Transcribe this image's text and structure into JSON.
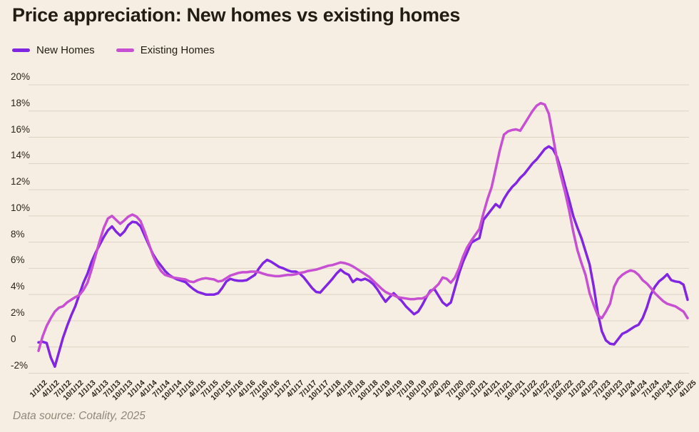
{
  "title": "Price appreciation: New homes vs existing homes",
  "footer": "Data source: Cotality, 2025",
  "legend": [
    {
      "label": "New Homes",
      "color": "#8026E3"
    },
    {
      "label": "Existing Homes",
      "color": "#C750D2"
    }
  ],
  "colors": {
    "background": "#F7EEE3",
    "text": "#221D14",
    "axis_text": "#2A2418",
    "grid": "#DDD3C3",
    "muted": "#8E8878",
    "new_homes": "#8026E3",
    "existing_homes": "#C750D2"
  },
  "chart_data": {
    "type": "line",
    "title": "Price appreciation: New homes vs existing homes",
    "x_range": [
      "1/1/12",
      "4/1/25"
    ],
    "frequency": "monthly",
    "y_unit": "%",
    "ylim": [
      -2,
      20
    ],
    "grid": true,
    "legend_position": "top-left",
    "y_ticks": [
      {
        "value": 20,
        "label": "20%"
      },
      {
        "value": 18,
        "label": "18%"
      },
      {
        "value": 16,
        "label": "16%"
      },
      {
        "value": 14,
        "label": "14%"
      },
      {
        "value": 12,
        "label": "12%"
      },
      {
        "value": 10,
        "label": "10%"
      },
      {
        "value": 8,
        "label": "8%"
      },
      {
        "value": 6,
        "label": "6%"
      },
      {
        "value": 4,
        "label": "4%"
      },
      {
        "value": 2,
        "label": "2%"
      },
      {
        "value": 0,
        "label": "0"
      },
      {
        "value": -2,
        "label": "-2%"
      }
    ],
    "x_tick_labels": [
      "1/1/12",
      "4/1/12",
      "7/1/12",
      "10/1/12",
      "1/1/13",
      "4/1/13",
      "7/1/13",
      "10/1/13",
      "1/1/14",
      "4/1/14",
      "7/1/14",
      "10/1/14",
      "1/1/15",
      "4/1/15",
      "7/1/15",
      "10/1/15",
      "1/1/16",
      "4/1/16",
      "7/1/16",
      "10/1/16",
      "1/1/17",
      "4/1/17",
      "7/1/17",
      "10/1/17",
      "1/1/18",
      "4/1/18",
      "7/1/18",
      "10/1/18",
      "1/1/19",
      "4/1/19",
      "7/1/19",
      "10/1/19",
      "1/1/20",
      "4/1/20",
      "7/1/20",
      "10/1/20",
      "1/1/21",
      "4/1/21",
      "7/1/21",
      "10/1/21",
      "1/1/22",
      "4/1/22",
      "7/1/22",
      "10/1/22",
      "1/1/23",
      "4/1/23",
      "7/1/23",
      "10/1/23",
      "1/1/24",
      "4/1/24",
      "7/1/24",
      "10/1/24",
      "1/1/25",
      "4/1/25"
    ],
    "series": [
      {
        "name": "New Homes",
        "color": "#8026E3",
        "values": [
          0.35,
          0.4,
          0.3,
          -0.8,
          -1.5,
          -0.4,
          0.7,
          1.6,
          2.4,
          3.1,
          4.0,
          4.9,
          5.6,
          6.5,
          7.2,
          7.8,
          8.4,
          8.9,
          9.2,
          8.8,
          8.5,
          8.8,
          9.3,
          9.55,
          9.5,
          9.2,
          8.5,
          7.8,
          7.1,
          6.6,
          6.2,
          5.8,
          5.5,
          5.3,
          5.15,
          5.05,
          4.95,
          4.65,
          4.4,
          4.2,
          4.1,
          4.0,
          4.0,
          4.0,
          4.1,
          4.5,
          5.0,
          5.2,
          5.1,
          5.05,
          5.05,
          5.1,
          5.3,
          5.5,
          6.0,
          6.4,
          6.65,
          6.5,
          6.3,
          6.1,
          6.0,
          5.85,
          5.75,
          5.75,
          5.6,
          5.3,
          4.9,
          4.5,
          4.2,
          4.15,
          4.5,
          4.85,
          5.2,
          5.6,
          5.9,
          5.65,
          5.5,
          4.95,
          5.2,
          5.1,
          5.2,
          5.05,
          4.8,
          4.4,
          3.9,
          3.45,
          3.8,
          4.1,
          3.8,
          3.5,
          3.1,
          2.8,
          2.5,
          2.7,
          3.2,
          3.8,
          4.3,
          4.4,
          3.9,
          3.4,
          3.15,
          3.4,
          4.5,
          5.6,
          6.5,
          7.2,
          7.95,
          8.15,
          8.3,
          9.7,
          10.1,
          10.5,
          10.9,
          10.65,
          11.3,
          11.8,
          12.2,
          12.5,
          12.9,
          13.2,
          13.6,
          14.0,
          14.3,
          14.7,
          15.1,
          15.3,
          15.1,
          14.5,
          13.5,
          12.3,
          11.2,
          10.0,
          9.1,
          8.3,
          7.3,
          6.3,
          4.6,
          2.6,
          1.2,
          0.5,
          0.25,
          0.2,
          0.6,
          1.0,
          1.15,
          1.35,
          1.55,
          1.7,
          2.2,
          3.0,
          4.0,
          4.6,
          5.0,
          5.25,
          5.55,
          5.1,
          5.0,
          4.95,
          4.75,
          3.6
        ]
      },
      {
        "name": "Existing Homes",
        "color": "#C750D2",
        "values": [
          -0.3,
          0.8,
          1.6,
          2.2,
          2.7,
          3.0,
          3.1,
          3.4,
          3.6,
          3.8,
          3.95,
          4.35,
          4.9,
          5.9,
          7.0,
          8.1,
          9.1,
          9.8,
          10.0,
          9.7,
          9.4,
          9.65,
          9.95,
          10.1,
          9.95,
          9.6,
          8.8,
          7.9,
          7.0,
          6.3,
          5.8,
          5.5,
          5.4,
          5.3,
          5.25,
          5.2,
          5.15,
          5.0,
          4.95,
          5.1,
          5.2,
          5.25,
          5.2,
          5.15,
          5.0,
          5.05,
          5.25,
          5.45,
          5.55,
          5.65,
          5.7,
          5.7,
          5.75,
          5.75,
          5.7,
          5.6,
          5.5,
          5.45,
          5.4,
          5.4,
          5.45,
          5.5,
          5.5,
          5.55,
          5.65,
          5.7,
          5.8,
          5.85,
          5.9,
          6.0,
          6.1,
          6.2,
          6.25,
          6.35,
          6.45,
          6.4,
          6.3,
          6.15,
          5.95,
          5.75,
          5.55,
          5.35,
          5.05,
          4.75,
          4.45,
          4.2,
          4.05,
          3.95,
          3.8,
          3.75,
          3.7,
          3.65,
          3.65,
          3.7,
          3.7,
          3.85,
          4.2,
          4.5,
          4.8,
          5.3,
          5.2,
          4.9,
          5.3,
          6.0,
          6.9,
          7.6,
          8.1,
          8.55,
          9.0,
          10.2,
          11.3,
          12.2,
          13.6,
          15.0,
          16.2,
          16.45,
          16.55,
          16.6,
          16.5,
          17.0,
          17.5,
          18.0,
          18.4,
          18.6,
          18.5,
          17.8,
          16.1,
          14.3,
          13.0,
          11.8,
          10.4,
          8.8,
          7.4,
          6.4,
          5.5,
          4.1,
          3.2,
          2.4,
          2.2,
          2.7,
          3.3,
          4.6,
          5.2,
          5.5,
          5.7,
          5.85,
          5.75,
          5.5,
          5.1,
          4.85,
          4.5,
          4.1,
          3.8,
          3.5,
          3.3,
          3.2,
          3.1,
          2.9,
          2.7,
          2.2
        ]
      }
    ]
  }
}
